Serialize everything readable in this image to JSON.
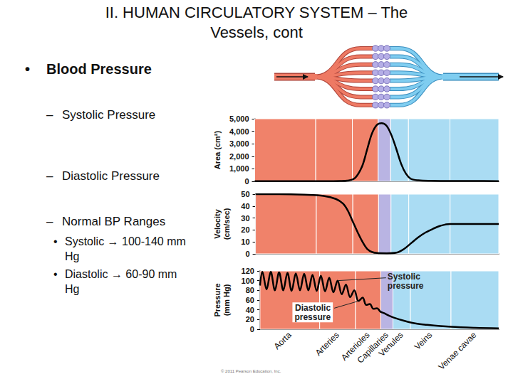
{
  "slide": {
    "title": "II. HUMAN CIRCULATORY SYSTEM – The Vessels, cont",
    "bullets": [
      {
        "level": 1,
        "bullet": "•",
        "text": "Blood Pressure"
      },
      {
        "level": 2,
        "bullet": "–",
        "text": "Systolic Pressure"
      },
      {
        "level": 2,
        "bullet": "–",
        "text": "Diastolic Pressure"
      },
      {
        "level": 2,
        "bullet": "–",
        "text": "Normal BP Ranges"
      },
      {
        "level": 3,
        "bullet": "•",
        "text": "Systolic → 100-140 mm Hg"
      },
      {
        "level": 3,
        "bullet": "•",
        "text": "Diastolic → 60-90 mm Hg"
      }
    ],
    "credit": "© 2011 Pearson Education, Inc."
  },
  "x_regions": [
    {
      "start": 0,
      "end": 25,
      "color": "#f0826a"
    },
    {
      "start": 25,
      "end": 40,
      "color": "#f0826a"
    },
    {
      "start": 40,
      "end": 50.6,
      "color": "#f0826a"
    },
    {
      "start": 50.6,
      "end": 55.7,
      "color": "#b9b4e3"
    },
    {
      "start": 55.7,
      "end": 63,
      "color": "#aadcf3"
    },
    {
      "start": 63,
      "end": 80,
      "color": "#aadcf3"
    },
    {
      "start": 80,
      "end": 100,
      "color": "#aadcf3"
    }
  ],
  "chart_data": [
    {
      "type": "line",
      "y_label": "Area (cm²)",
      "x": [
        0,
        10,
        20,
        30,
        35,
        38,
        41,
        44,
        46,
        48,
        50,
        52,
        54,
        56,
        58,
        60,
        62,
        64,
        67,
        72,
        80,
        90,
        100
      ],
      "values": [
        8,
        8,
        10,
        15,
        25,
        60,
        250,
        1200,
        2500,
        3800,
        4500,
        4650,
        4450,
        3700,
        2600,
        1400,
        600,
        200,
        80,
        40,
        30,
        25,
        20
      ],
      "color": "#000000",
      "xlim": [
        0,
        100
      ],
      "ylim": [
        0,
        5000
      ],
      "yticks": [
        0,
        {
          "value": 1000,
          "label": "1,000"
        },
        {
          "value": 2000,
          "label": "2,000"
        },
        {
          "value": 3000,
          "label": "3,000"
        },
        {
          "value": 4000,
          "label": "4,000"
        },
        {
          "value": 5000,
          "label": "5,000"
        }
      ],
      "grid": false,
      "tick_labels": "y"
    },
    {
      "type": "line",
      "y_label": "Velocity (cm/sec)",
      "x": [
        0,
        10,
        20,
        28,
        33,
        36,
        38,
        40,
        42,
        44,
        46,
        48,
        50,
        54,
        58,
        61,
        64,
        67,
        70,
        73,
        76,
        80,
        90,
        100
      ],
      "values": [
        50,
        50,
        49.5,
        48.5,
        46,
        42,
        36,
        27,
        18,
        10,
        4,
        1.5,
        0.7,
        0.5,
        1,
        4,
        9,
        14,
        18,
        21,
        23.5,
        25,
        25,
        25
      ],
      "color": "#000000",
      "xlim": [
        0,
        100
      ],
      "ylim": [
        0,
        50
      ],
      "yticks": [
        0,
        10,
        20,
        30,
        40,
        50
      ],
      "grid": false,
      "tick_labels": "y"
    },
    {
      "type": "line",
      "y_label": "Pressure (mm Hg)",
      "x": [
        0,
        1,
        2.75,
        4.5,
        6.25,
        8,
        9.75,
        11.5,
        13.25,
        15,
        16.75,
        18.5,
        20.25,
        22,
        23.75,
        25.5,
        27.25,
        29,
        30.75,
        32.5,
        34.25,
        36,
        37.75,
        39.5,
        41.25,
        43,
        44.5,
        46,
        47.5,
        49,
        50.5,
        52,
        54,
        56,
        60,
        65,
        70,
        80,
        90,
        100
      ],
      "values": [
        90,
        118,
        82,
        118,
        80,
        117,
        80,
        116,
        79,
        115,
        80,
        114,
        80,
        112,
        79,
        110,
        78,
        106,
        76,
        100,
        72,
        92,
        66,
        80,
        58,
        65,
        50,
        52,
        42,
        43,
        36,
        33,
        28,
        24,
        18,
        12,
        9,
        5,
        3,
        2
      ],
      "color": "#000000",
      "xlim": [
        0,
        100
      ],
      "xticks": [
        {
          "value": 12.5,
          "label": "Aorta"
        },
        {
          "value": 32.5,
          "label": "Arteries"
        },
        {
          "value": 45.3,
          "label": "Arterioles"
        },
        {
          "value": 53.15,
          "label": "Capillaries"
        },
        {
          "value": 59.35,
          "label": "Venules"
        },
        {
          "value": 71.5,
          "label": "Veins"
        },
        {
          "value": 90,
          "label": "Venae cavae"
        }
      ],
      "ylim": [
        0,
        120
      ],
      "yticks": [
        0,
        20,
        40,
        60,
        80,
        100,
        120
      ],
      "grid": false,
      "annotations": [
        {
          "text": "Systolic pressure",
          "x": 32.5,
          "y": 100
        },
        {
          "text": "Diastolic pressure",
          "x": 41.25,
          "y": 58
        }
      ]
    }
  ]
}
